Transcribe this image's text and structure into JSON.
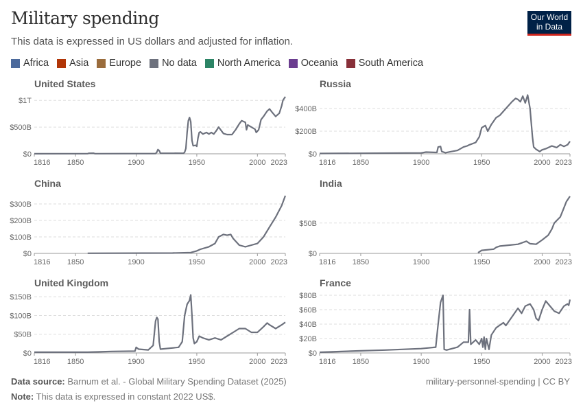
{
  "header": {
    "title": "Military spending",
    "subtitle": "This data is expressed in US dollars and adjusted for inflation.",
    "logo": "Our World in Data"
  },
  "legend": [
    {
      "label": "Africa",
      "color": "#4c6a9c"
    },
    {
      "label": "Asia",
      "color": "#b13507"
    },
    {
      "label": "Europe",
      "color": "#9a6c3c"
    },
    {
      "label": "No data",
      "color": "#6d717d"
    },
    {
      "label": "North America",
      "color": "#2c8465"
    },
    {
      "label": "Oceania",
      "color": "#6b3d8f"
    },
    {
      "label": "South America",
      "color": "#883039"
    }
  ],
  "line_color": "#6d717d",
  "chart_data": [
    {
      "type": "line",
      "title": "United States",
      "unit": "billion US$",
      "xlim": [
        1816,
        2023
      ],
      "xticks": [
        "1816",
        "1850",
        "1900",
        "1950",
        "2000",
        "2023"
      ],
      "ylim": [
        0,
        1080
      ],
      "yticks": [
        {
          "v": 0,
          "label": "$0"
        },
        {
          "v": 500,
          "label": "$500B"
        },
        {
          "v": 1000,
          "label": "$1T"
        }
      ],
      "points": [
        [
          1816,
          1
        ],
        [
          1860,
          2
        ],
        [
          1861,
          10
        ],
        [
          1865,
          12
        ],
        [
          1866,
          3
        ],
        [
          1916,
          5
        ],
        [
          1917,
          30
        ],
        [
          1918,
          80
        ],
        [
          1919,
          60
        ],
        [
          1920,
          12
        ],
        [
          1939,
          10
        ],
        [
          1940,
          30
        ],
        [
          1941,
          100
        ],
        [
          1942,
          400
        ],
        [
          1943,
          620
        ],
        [
          1944,
          680
        ],
        [
          1945,
          600
        ],
        [
          1946,
          250
        ],
        [
          1947,
          150
        ],
        [
          1949,
          160
        ],
        [
          1950,
          140
        ],
        [
          1951,
          300
        ],
        [
          1952,
          400
        ],
        [
          1953,
          410
        ],
        [
          1955,
          370
        ],
        [
          1958,
          400
        ],
        [
          1960,
          370
        ],
        [
          1962,
          400
        ],
        [
          1964,
          370
        ],
        [
          1966,
          430
        ],
        [
          1968,
          500
        ],
        [
          1970,
          440
        ],
        [
          1972,
          380
        ],
        [
          1975,
          360
        ],
        [
          1979,
          360
        ],
        [
          1982,
          450
        ],
        [
          1985,
          560
        ],
        [
          1987,
          620
        ],
        [
          1990,
          590
        ],
        [
          1991,
          450
        ],
        [
          1992,
          540
        ],
        [
          1995,
          500
        ],
        [
          1998,
          460
        ],
        [
          1999,
          400
        ],
        [
          2001,
          450
        ],
        [
          2003,
          640
        ],
        [
          2005,
          700
        ],
        [
          2008,
          800
        ],
        [
          2010,
          840
        ],
        [
          2012,
          780
        ],
        [
          2015,
          700
        ],
        [
          2018,
          760
        ],
        [
          2020,
          900
        ],
        [
          2021,
          1000
        ],
        [
          2023,
          1070
        ]
      ]
    },
    {
      "type": "line",
      "title": "Russia",
      "unit": "billion US$",
      "xlim": [
        1816,
        2023
      ],
      "xticks": [
        "1816",
        "1850",
        "1900",
        "1950",
        "2000",
        "2023"
      ],
      "ylim": [
        0,
        510
      ],
      "yticks": [
        {
          "v": 0,
          "label": "$0"
        },
        {
          "v": 200,
          "label": "$200B"
        },
        {
          "v": 400,
          "label": "$400B"
        }
      ],
      "points": [
        [
          1816,
          3
        ],
        [
          1850,
          5
        ],
        [
          1900,
          8
        ],
        [
          1904,
          15
        ],
        [
          1913,
          12
        ],
        [
          1914,
          60
        ],
        [
          1916,
          65
        ],
        [
          1917,
          20
        ],
        [
          1920,
          10
        ],
        [
          1925,
          20
        ],
        [
          1930,
          30
        ],
        [
          1935,
          60
        ],
        [
          1938,
          70
        ],
        [
          1940,
          80
        ],
        [
          1945,
          100
        ],
        [
          1948,
          150
        ],
        [
          1950,
          230
        ],
        [
          1953,
          250
        ],
        [
          1955,
          200
        ],
        [
          1958,
          260
        ],
        [
          1962,
          320
        ],
        [
          1965,
          340
        ],
        [
          1970,
          400
        ],
        [
          1975,
          460
        ],
        [
          1978,
          490
        ],
        [
          1980,
          480
        ],
        [
          1982,
          460
        ],
        [
          1984,
          510
        ],
        [
          1986,
          450
        ],
        [
          1988,
          520
        ],
        [
          1990,
          400
        ],
        [
          1992,
          150
        ],
        [
          1993,
          60
        ],
        [
          1995,
          40
        ],
        [
          1998,
          20
        ],
        [
          2000,
          35
        ],
        [
          2003,
          45
        ],
        [
          2008,
          70
        ],
        [
          2012,
          55
        ],
        [
          2015,
          80
        ],
        [
          2018,
          65
        ],
        [
          2021,
          80
        ],
        [
          2023,
          110
        ]
      ]
    },
    {
      "type": "line",
      "title": "China",
      "unit": "billion US$",
      "xlim": [
        1816,
        2023
      ],
      "xticks": [
        "1816",
        "1850",
        "1900",
        "1950",
        "2000",
        "2023"
      ],
      "ylim": [
        0,
        350
      ],
      "yticks": [
        {
          "v": 0,
          "label": "$0"
        },
        {
          "v": 100,
          "label": "$100B"
        },
        {
          "v": 200,
          "label": "$200B"
        },
        {
          "v": 300,
          "label": "$300B"
        }
      ],
      "points": [
        [
          1860,
          1
        ],
        [
          1930,
          2
        ],
        [
          1945,
          5
        ],
        [
          1950,
          15
        ],
        [
          1953,
          25
        ],
        [
          1960,
          40
        ],
        [
          1965,
          60
        ],
        [
          1968,
          100
        ],
        [
          1972,
          115
        ],
        [
          1975,
          110
        ],
        [
          1978,
          115
        ],
        [
          1980,
          90
        ],
        [
          1985,
          50
        ],
        [
          1990,
          40
        ],
        [
          1995,
          50
        ],
        [
          2000,
          60
        ],
        [
          2005,
          100
        ],
        [
          2010,
          160
        ],
        [
          2015,
          220
        ],
        [
          2020,
          290
        ],
        [
          2023,
          350
        ]
      ]
    },
    {
      "type": "line",
      "title": "India",
      "unit": "billion US$",
      "xlim": [
        1816,
        2023
      ],
      "xticks": [
        "1816",
        "1850",
        "1900",
        "1950",
        "2000",
        "2023"
      ],
      "ylim": [
        0,
        95
      ],
      "yticks": [
        {
          "v": 0,
          "label": "$0"
        },
        {
          "v": 50,
          "label": "$50B"
        }
      ],
      "points": [
        [
          1947,
          1
        ],
        [
          1950,
          5
        ],
        [
          1960,
          7
        ],
        [
          1962,
          10
        ],
        [
          1965,
          12
        ],
        [
          1970,
          13
        ],
        [
          1980,
          15
        ],
        [
          1987,
          20
        ],
        [
          1990,
          16
        ],
        [
          1995,
          15
        ],
        [
          2000,
          22
        ],
        [
          2005,
          30
        ],
        [
          2008,
          40
        ],
        [
          2010,
          50
        ],
        [
          2015,
          60
        ],
        [
          2018,
          75
        ],
        [
          2020,
          85
        ],
        [
          2023,
          94
        ]
      ]
    },
    {
      "type": "line",
      "title": "United Kingdom",
      "unit": "billion US$",
      "xlim": [
        1816,
        2023
      ],
      "xticks": [
        "1816",
        "1850",
        "1900",
        "1950",
        "2000",
        "2023"
      ],
      "ylim": [
        0,
        154
      ],
      "yticks": [
        {
          "v": 0,
          "label": "$0"
        },
        {
          "v": 50,
          "label": "$50B"
        },
        {
          "v": 100,
          "label": "$100B"
        },
        {
          "v": 150,
          "label": "$150B"
        }
      ],
      "points": [
        [
          1816,
          2
        ],
        [
          1860,
          2
        ],
        [
          1880,
          4
        ],
        [
          1899,
          5
        ],
        [
          1900,
          15
        ],
        [
          1902,
          10
        ],
        [
          1910,
          8
        ],
        [
          1914,
          20
        ],
        [
          1916,
          85
        ],
        [
          1917,
          95
        ],
        [
          1918,
          90
        ],
        [
          1919,
          30
        ],
        [
          1920,
          10
        ],
        [
          1935,
          15
        ],
        [
          1938,
          30
        ],
        [
          1940,
          100
        ],
        [
          1942,
          130
        ],
        [
          1944,
          140
        ],
        [
          1945,
          155
        ],
        [
          1946,
          100
        ],
        [
          1947,
          40
        ],
        [
          1948,
          25
        ],
        [
          1950,
          30
        ],
        [
          1952,
          45
        ],
        [
          1955,
          40
        ],
        [
          1960,
          35
        ],
        [
          1965,
          40
        ],
        [
          1970,
          35
        ],
        [
          1975,
          45
        ],
        [
          1980,
          55
        ],
        [
          1985,
          65
        ],
        [
          1990,
          65
        ],
        [
          1995,
          55
        ],
        [
          2000,
          55
        ],
        [
          2005,
          70
        ],
        [
          2008,
          80
        ],
        [
          2010,
          75
        ],
        [
          2015,
          65
        ],
        [
          2020,
          75
        ],
        [
          2023,
          82
        ]
      ]
    },
    {
      "type": "line",
      "title": "France",
      "unit": "billion US$",
      "xlim": [
        1816,
        2023
      ],
      "xticks": [
        "1816",
        "1850",
        "1900",
        "1950",
        "2000",
        "2023"
      ],
      "ylim": [
        0,
        80
      ],
      "yticks": [
        {
          "v": 0,
          "label": "$0"
        },
        {
          "v": 20,
          "label": "$20B"
        },
        {
          "v": 40,
          "label": "$40B"
        },
        {
          "v": 60,
          "label": "$60B"
        },
        {
          "v": 80,
          "label": "$80B"
        }
      ],
      "points": [
        [
          1816,
          1
        ],
        [
          1850,
          3
        ],
        [
          1870,
          4
        ],
        [
          1900,
          6
        ],
        [
          1912,
          8
        ],
        [
          1914,
          40
        ],
        [
          1916,
          70
        ],
        [
          1918,
          80
        ],
        [
          1919,
          5
        ],
        [
          1921,
          4
        ],
        [
          1930,
          8
        ],
        [
          1935,
          15
        ],
        [
          1939,
          15
        ],
        [
          1940,
          60
        ],
        [
          1941,
          12
        ],
        [
          1945,
          18
        ],
        [
          1948,
          12
        ],
        [
          1950,
          20
        ],
        [
          1951,
          8
        ],
        [
          1952,
          22
        ],
        [
          1953,
          5
        ],
        [
          1954,
          20
        ],
        [
          1956,
          5
        ],
        [
          1958,
          25
        ],
        [
          1962,
          35
        ],
        [
          1968,
          42
        ],
        [
          1970,
          38
        ],
        [
          1975,
          50
        ],
        [
          1980,
          62
        ],
        [
          1983,
          55
        ],
        [
          1986,
          65
        ],
        [
          1990,
          68
        ],
        [
          1993,
          60
        ],
        [
          1995,
          48
        ],
        [
          1997,
          45
        ],
        [
          2000,
          60
        ],
        [
          2003,
          72
        ],
        [
          2005,
          68
        ],
        [
          2010,
          58
        ],
        [
          2014,
          55
        ],
        [
          2018,
          65
        ],
        [
          2021,
          68
        ],
        [
          2022,
          66
        ],
        [
          2023,
          74
        ]
      ]
    }
  ],
  "footer": {
    "source_label": "Data source:",
    "source": "Barnum et al. - Global Military Spending Dataset (2025)",
    "note_label": "Note:",
    "note": "This data is expressed in constant 2022 US$.",
    "slug": "military-personnel-spending | CC BY"
  }
}
